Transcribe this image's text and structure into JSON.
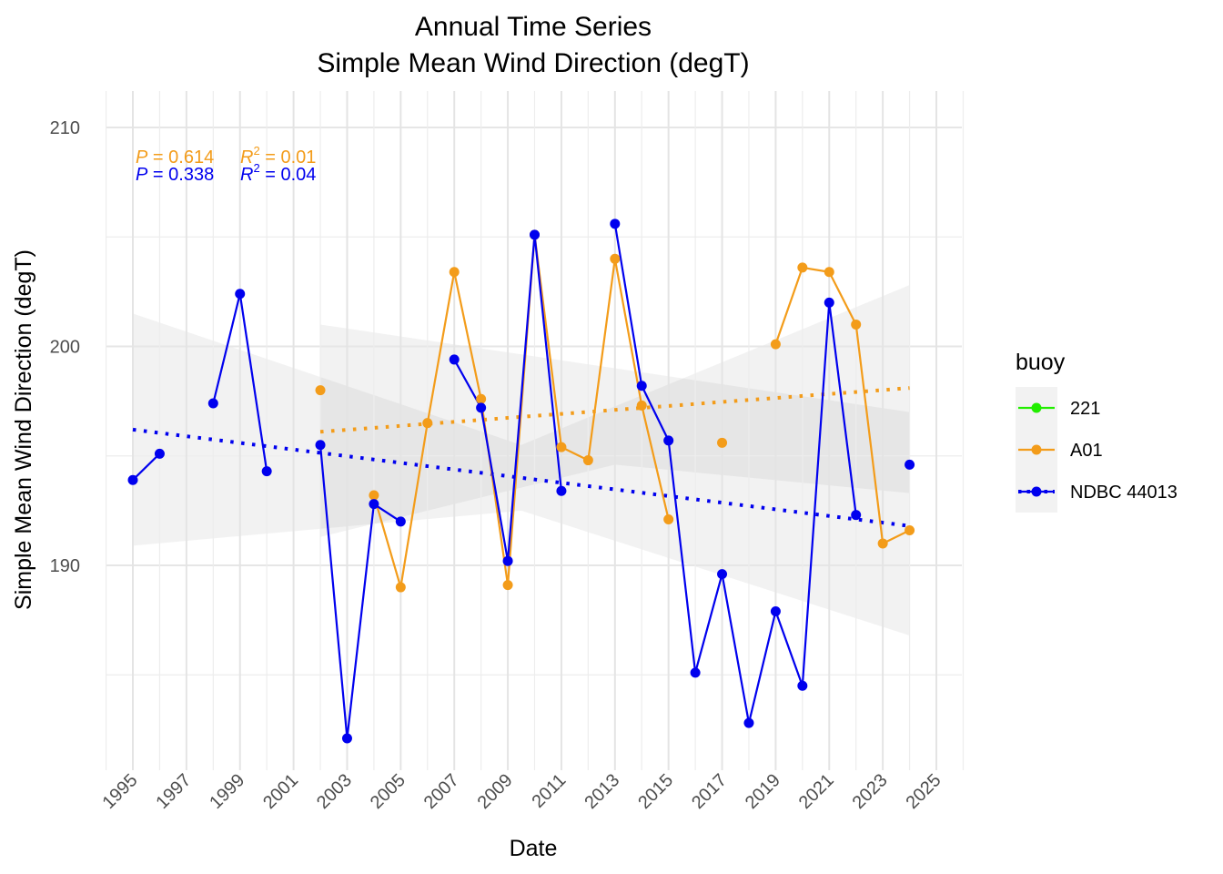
{
  "chart_data": {
    "type": "line",
    "title_line1": "Annual Time Series",
    "title_line2": "Simple Mean Wind Direction (degT)",
    "xlabel": "Date",
    "ylabel": "Simple Mean Wind Direction (degT)",
    "xlim": [
      1994,
      2026
    ],
    "ylim": [
      181,
      211
    ],
    "y_ticks": [
      190,
      200,
      210
    ],
    "x_ticks": [
      "1995",
      "1997",
      "1999",
      "2001",
      "2003",
      "2005",
      "2007",
      "2009",
      "2011",
      "2013",
      "2015",
      "2017",
      "2019",
      "2021",
      "2023",
      "2025"
    ],
    "grid": true,
    "legend": {
      "title": "buoy",
      "position": "right",
      "entries": [
        {
          "label": "221",
          "color": "#22ee00"
        },
        {
          "label": "A01",
          "color": "#f39c1a"
        },
        {
          "label": "NDBC 44013",
          "color": "#0000ee"
        }
      ]
    },
    "stats": [
      {
        "p_label": "P",
        "p_value": "= 0.614",
        "r_label": "R",
        "r_sup": "2",
        "r_value": "= 0.01",
        "color": "#f39c1a"
      },
      {
        "p_label": "P",
        "p_value": "= 0.338",
        "r_label": "R",
        "r_sup": "2",
        "r_value": "= 0.04",
        "color": "#0000ee"
      }
    ],
    "series": [
      {
        "name": "A01",
        "color": "#f39c1a",
        "points": [
          [
            2002,
            198.0
          ],
          [
            2004,
            193.2
          ],
          [
            2005,
            189.0
          ],
          [
            2006,
            196.5
          ],
          [
            2007,
            203.4
          ],
          [
            2008,
            197.6
          ],
          [
            2009,
            189.1
          ],
          [
            2010,
            205.1
          ],
          [
            2011,
            195.4
          ],
          [
            2012,
            194.8
          ],
          [
            2013,
            204.0
          ],
          [
            2014,
            197.3
          ],
          [
            2015,
            192.1
          ],
          [
            2017,
            195.6
          ],
          [
            2019,
            200.1
          ],
          [
            2020,
            203.6
          ],
          [
            2021,
            203.4
          ],
          [
            2022,
            201.0
          ],
          [
            2023,
            191.0
          ],
          [
            2024,
            191.6
          ]
        ],
        "trend": {
          "x": [
            2002,
            2024
          ],
          "y": [
            196.1,
            198.1
          ]
        },
        "ci": {
          "x": [
            2002,
            2013,
            2024
          ],
          "upper": [
            201.0,
            199.0,
            197.0
          ],
          "lower": [
            191.3,
            194.6,
            193.3
          ]
        }
      },
      {
        "name": "NDBC 44013",
        "color": "#0000ee",
        "points": [
          [
            1995,
            193.9
          ],
          [
            1996,
            195.1
          ],
          [
            1998,
            197.4
          ],
          [
            1999,
            202.4
          ],
          [
            2000,
            194.3
          ],
          [
            2002,
            195.5
          ],
          [
            2003,
            182.1
          ],
          [
            2004,
            192.8
          ],
          [
            2005,
            192.0
          ],
          [
            2007,
            199.4
          ],
          [
            2008,
            197.2
          ],
          [
            2009,
            190.2
          ],
          [
            2010,
            205.1
          ],
          [
            2011,
            193.4
          ],
          [
            2013,
            205.6
          ],
          [
            2014,
            198.2
          ],
          [
            2015,
            195.7
          ],
          [
            2016,
            185.1
          ],
          [
            2017,
            189.6
          ],
          [
            2018,
            182.8
          ],
          [
            2019,
            187.9
          ],
          [
            2020,
            184.5
          ],
          [
            2021,
            202.0
          ],
          [
            2022,
            192.3
          ],
          [
            2024,
            194.6
          ]
        ],
        "trend": {
          "x": [
            1995,
            2024
          ],
          "y": [
            196.2,
            191.8
          ]
        },
        "ci": {
          "x": [
            1995,
            2009.5,
            2024
          ],
          "upper": [
            201.5,
            195.5,
            202.8
          ],
          "lower": [
            190.9,
            192.5,
            186.8
          ]
        }
      }
    ]
  }
}
